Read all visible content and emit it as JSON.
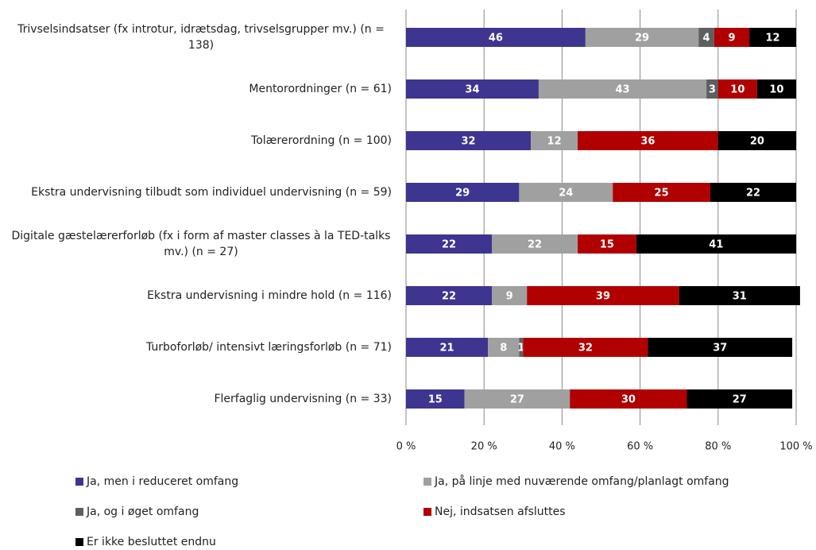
{
  "chart_data": {
    "type": "stacked-barh",
    "categories": [
      "Trivselsindsatser (fx introtur, idrætsdag, trivselsgrupper mv.) (n = 138)",
      "Mentorordninger (n = 61)",
      "Tolærerordning (n = 100)",
      "Ekstra undervisning tilbudt som individuel undervisning (n = 59)",
      "Digitale gæstelærerforløb (fx i form af master classes à la TED-talks mv.) (n = 27)",
      "Ekstra undervisning i mindre hold (n = 116)",
      "Turboforløb/ intensivt læringsforløb (n = 71)",
      "Flerfaglig undervisning (n = 33)"
    ],
    "series": [
      {
        "name": "Ja, men i reduceret omfang",
        "color": "#3d3590",
        "values": [
          46,
          34,
          32,
          29,
          22,
          22,
          21,
          15
        ]
      },
      {
        "name": "Ja, på linje med nuværende omfang/planlagt omfang",
        "color": "#a0a0a0",
        "values": [
          29,
          43,
          12,
          24,
          22,
          9,
          8,
          27
        ]
      },
      {
        "name": "Ja, og i øget omfang",
        "color": "#5f5f5f",
        "values": [
          4,
          3,
          0,
          0,
          0,
          0,
          1,
          0
        ]
      },
      {
        "name": "Nej, indsatsen afsluttes",
        "color": "#b00000",
        "values": [
          9,
          10,
          36,
          25,
          15,
          39,
          32,
          30
        ]
      },
      {
        "name": "Er ikke besluttet endnu",
        "color": "#000000",
        "values": [
          12,
          10,
          20,
          22,
          41,
          31,
          37,
          27
        ]
      }
    ],
    "xlim": [
      0,
      100
    ],
    "xticks": [
      {
        "value": 0,
        "label": "0 %"
      },
      {
        "value": 20,
        "label": "20 %"
      },
      {
        "value": 40,
        "label": "40 %"
      },
      {
        "value": 60,
        "label": "60 %"
      },
      {
        "value": 80,
        "label": "80 %"
      },
      {
        "value": 100,
        "label": "100 %"
      }
    ],
    "grid": true
  }
}
